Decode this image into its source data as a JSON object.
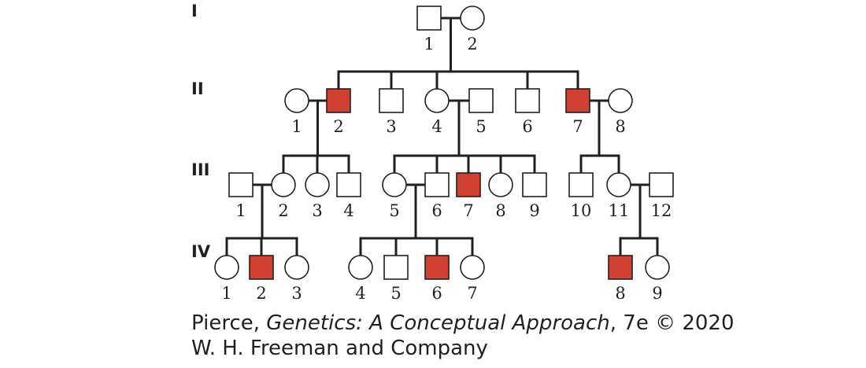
{
  "colors": {
    "affected": "#d04030",
    "unaffected": "#ffffff",
    "line": "#231f20"
  },
  "generations": [
    "I",
    "II",
    "III",
    "IV"
  ],
  "individuals": [
    {
      "id": "I-1",
      "gen": "I",
      "label": "1",
      "sex": "male",
      "affected": false
    },
    {
      "id": "I-2",
      "gen": "I",
      "label": "2",
      "sex": "female",
      "affected": false
    },
    {
      "id": "II-1",
      "gen": "II",
      "label": "1",
      "sex": "female",
      "affected": false
    },
    {
      "id": "II-2",
      "gen": "II",
      "label": "2",
      "sex": "male",
      "affected": true
    },
    {
      "id": "II-3",
      "gen": "II",
      "label": "3",
      "sex": "male",
      "affected": false
    },
    {
      "id": "II-4",
      "gen": "II",
      "label": "4",
      "sex": "female",
      "affected": false
    },
    {
      "id": "II-5",
      "gen": "II",
      "label": "5",
      "sex": "male",
      "affected": false
    },
    {
      "id": "II-6",
      "gen": "II",
      "label": "6",
      "sex": "male",
      "affected": false
    },
    {
      "id": "II-7",
      "gen": "II",
      "label": "7",
      "sex": "male",
      "affected": true
    },
    {
      "id": "II-8",
      "gen": "II",
      "label": "8",
      "sex": "female",
      "affected": false
    },
    {
      "id": "III-1",
      "gen": "III",
      "label": "1",
      "sex": "male",
      "affected": false
    },
    {
      "id": "III-2",
      "gen": "III",
      "label": "2",
      "sex": "female",
      "affected": false
    },
    {
      "id": "III-3",
      "gen": "III",
      "label": "3",
      "sex": "female",
      "affected": false
    },
    {
      "id": "III-4",
      "gen": "III",
      "label": "4",
      "sex": "male",
      "affected": false
    },
    {
      "id": "III-5",
      "gen": "III",
      "label": "5",
      "sex": "female",
      "affected": false
    },
    {
      "id": "III-6",
      "gen": "III",
      "label": "6",
      "sex": "male",
      "affected": false
    },
    {
      "id": "III-7",
      "gen": "III",
      "label": "7",
      "sex": "male",
      "affected": true
    },
    {
      "id": "III-8",
      "gen": "III",
      "label": "8",
      "sex": "female",
      "affected": false
    },
    {
      "id": "III-9",
      "gen": "III",
      "label": "9",
      "sex": "male",
      "affected": false
    },
    {
      "id": "III-10",
      "gen": "III",
      "label": "10",
      "sex": "male",
      "affected": false
    },
    {
      "id": "III-11",
      "gen": "III",
      "label": "11",
      "sex": "female",
      "affected": false
    },
    {
      "id": "III-12",
      "gen": "III",
      "label": "12",
      "sex": "male",
      "affected": false
    },
    {
      "id": "IV-1",
      "gen": "IV",
      "label": "1",
      "sex": "female",
      "affected": false
    },
    {
      "id": "IV-2",
      "gen": "IV",
      "label": "2",
      "sex": "male",
      "affected": true
    },
    {
      "id": "IV-3",
      "gen": "IV",
      "label": "3",
      "sex": "female",
      "affected": false
    },
    {
      "id": "IV-4",
      "gen": "IV",
      "label": "4",
      "sex": "female",
      "affected": false
    },
    {
      "id": "IV-5",
      "gen": "IV",
      "label": "5",
      "sex": "male",
      "affected": false
    },
    {
      "id": "IV-6",
      "gen": "IV",
      "label": "6",
      "sex": "male",
      "affected": true
    },
    {
      "id": "IV-7",
      "gen": "IV",
      "label": "7",
      "sex": "female",
      "affected": false
    },
    {
      "id": "IV-8",
      "gen": "IV",
      "label": "8",
      "sex": "male",
      "affected": true
    },
    {
      "id": "IV-9",
      "gen": "IV",
      "label": "9",
      "sex": "female",
      "affected": false
    }
  ],
  "matings": [
    {
      "a": "I-1",
      "b": "I-2",
      "children": [
        "II-2",
        "II-3",
        "II-4",
        "II-6",
        "II-7"
      ]
    },
    {
      "a": "II-1",
      "b": "II-2",
      "children": [
        "III-2",
        "III-3",
        "III-4"
      ]
    },
    {
      "a": "II-4",
      "b": "II-5",
      "children": [
        "III-5",
        "III-6",
        "III-7",
        "III-8",
        "III-9"
      ]
    },
    {
      "a": "II-7",
      "b": "II-8",
      "children": [
        "III-10",
        "III-11"
      ]
    },
    {
      "a": "III-1",
      "b": "III-2",
      "children": [
        "IV-1",
        "IV-2",
        "IV-3"
      ]
    },
    {
      "a": "III-5",
      "b": "III-6",
      "children": [
        "IV-4",
        "IV-5",
        "IV-6",
        "IV-7"
      ]
    },
    {
      "a": "III-11",
      "b": "III-12",
      "children": [
        "IV-8",
        "IV-9"
      ]
    }
  ],
  "credit": {
    "line1_pre": "Pierce, ",
    "line1_title": "Genetics: A Conceptual Approach",
    "line1_post": ", 7e © 2020",
    "line2": "W. H. Freeman and Company"
  }
}
